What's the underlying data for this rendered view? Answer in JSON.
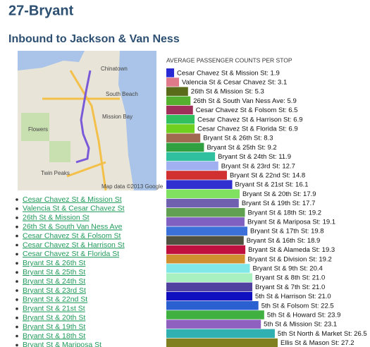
{
  "header": {
    "title": "27-Bryant",
    "subtitle": "Inbound to Jackson & Van Ness"
  },
  "map": {
    "labels": [
      "Chinatown",
      "South Beach",
      "Mission Bay",
      "Flowers",
      "Twin Peaks",
      "Map data ©2013 Google"
    ]
  },
  "chart_data": {
    "type": "bar",
    "orientation": "horizontal",
    "title": "AVERAGE PASSENGER COUNTS PER STOP",
    "categories": [
      "Cesar Chavez St & Mission St",
      "Valencia St & Cesar Chavez St",
      "26th St & Mission St",
      "26th St & South Van Ness Ave",
      "Cesar Chavez St & Folsom St",
      "Cesar Chavez St & Harrison St",
      "Cesar Chavez St & Florida St",
      "Bryant St & 26th St",
      "Bryant St & 25th St",
      "Bryant St & 24th St",
      "Bryant St & 23rd St",
      "Bryant St & 22nd St",
      "Bryant St & 21st St",
      "Bryant St & 20th St",
      "Bryant St & 19th St",
      "Bryant St & 18th St",
      "Bryant St & Mariposa St",
      "Bryant St & 17th St",
      "Bryant St & 16th St",
      "Bryant St & Alameda St",
      "Bryant St & Division St",
      "Bryant St & 9th St",
      "Bryant St & 8th St",
      "Bryant St & 7th St",
      "5th St & Harrison St",
      "5th St & Folsom St",
      "5th St & Howard St",
      "5th St & Mission St",
      "5th St North & Market St",
      "Ellis St & Mason St"
    ],
    "values": [
      1.9,
      3.1,
      5.3,
      5.9,
      6.5,
      6.9,
      6.9,
      8.3,
      9.2,
      11.9,
      12.7,
      14.8,
      16.1,
      17.9,
      17.7,
      19.2,
      19.1,
      19.8,
      18.9,
      19.3,
      19.2,
      20.4,
      21.0,
      21.0,
      21.0,
      22.5,
      23.9,
      23.1,
      26.5,
      27.2
    ],
    "value_labels": [
      "Cesar Chavez St & Mission St: 1.9",
      "Valencia St & Cesar Chavez St: 3.1",
      "26th St & Mission St: 5.3",
      "26th St & South Van Ness Ave: 5.9",
      "Cesar Chavez St & Folsom St: 6.5",
      "Cesar Chavez St & Harrison St: 6.9",
      "Cesar Chavez St & Florida St: 6.9",
      "Bryant St & 26th St: 8.3",
      "Bryant St & 25th St: 9.2",
      "Bryant St & 24th St: 11.9",
      "Bryant St & 23rd St: 12.7",
      "Bryant St & 22nd St: 14.8",
      "Bryant St & 21st St: 16.1",
      "Bryant St & 20th St: 17.9",
      "Bryant St & 19th St: 17.7",
      "Bryant St & 18th St: 19.2",
      "Bryant St & Mariposa St: 19.1",
      "Bryant St & 17th St: 19.8",
      "Bryant St & 16th St: 18.9",
      "Bryant St & Alameda St: 19.3",
      "Bryant St & Division St: 19.2",
      "Bryant St & 9th St: 20.4",
      "Bryant St & 8th St: 21.0",
      "Bryant St & 7th St: 21.0",
      "5th St & Harrison St: 21.0",
      "5th St & Folsom St: 22.5",
      "5th St & Howard St: 23.9",
      "5th St & Mission St: 23.1",
      "5th St North & Market St: 26.5",
      "Ellis St & Mason St: 27.2"
    ],
    "colors": [
      "#2a2ad4",
      "#e07a8a",
      "#5a6b1a",
      "#55b030",
      "#a0305a",
      "#30c060",
      "#70d020",
      "#a06a50",
      "#30a040",
      "#30c0a0",
      "#a0b0f0",
      "#d03030",
      "#3030d0",
      "#80e060",
      "#7060b0",
      "#60a050",
      "#8060c0",
      "#3a70d8",
      "#505040",
      "#c01040",
      "#d09030",
      "#80e8e8",
      "#a8f0c0",
      "#5040a0",
      "#1010c0",
      "#2a60d0",
      "#40b040",
      "#9060c0",
      "#30b0b0",
      "#808020"
    ]
  }
}
